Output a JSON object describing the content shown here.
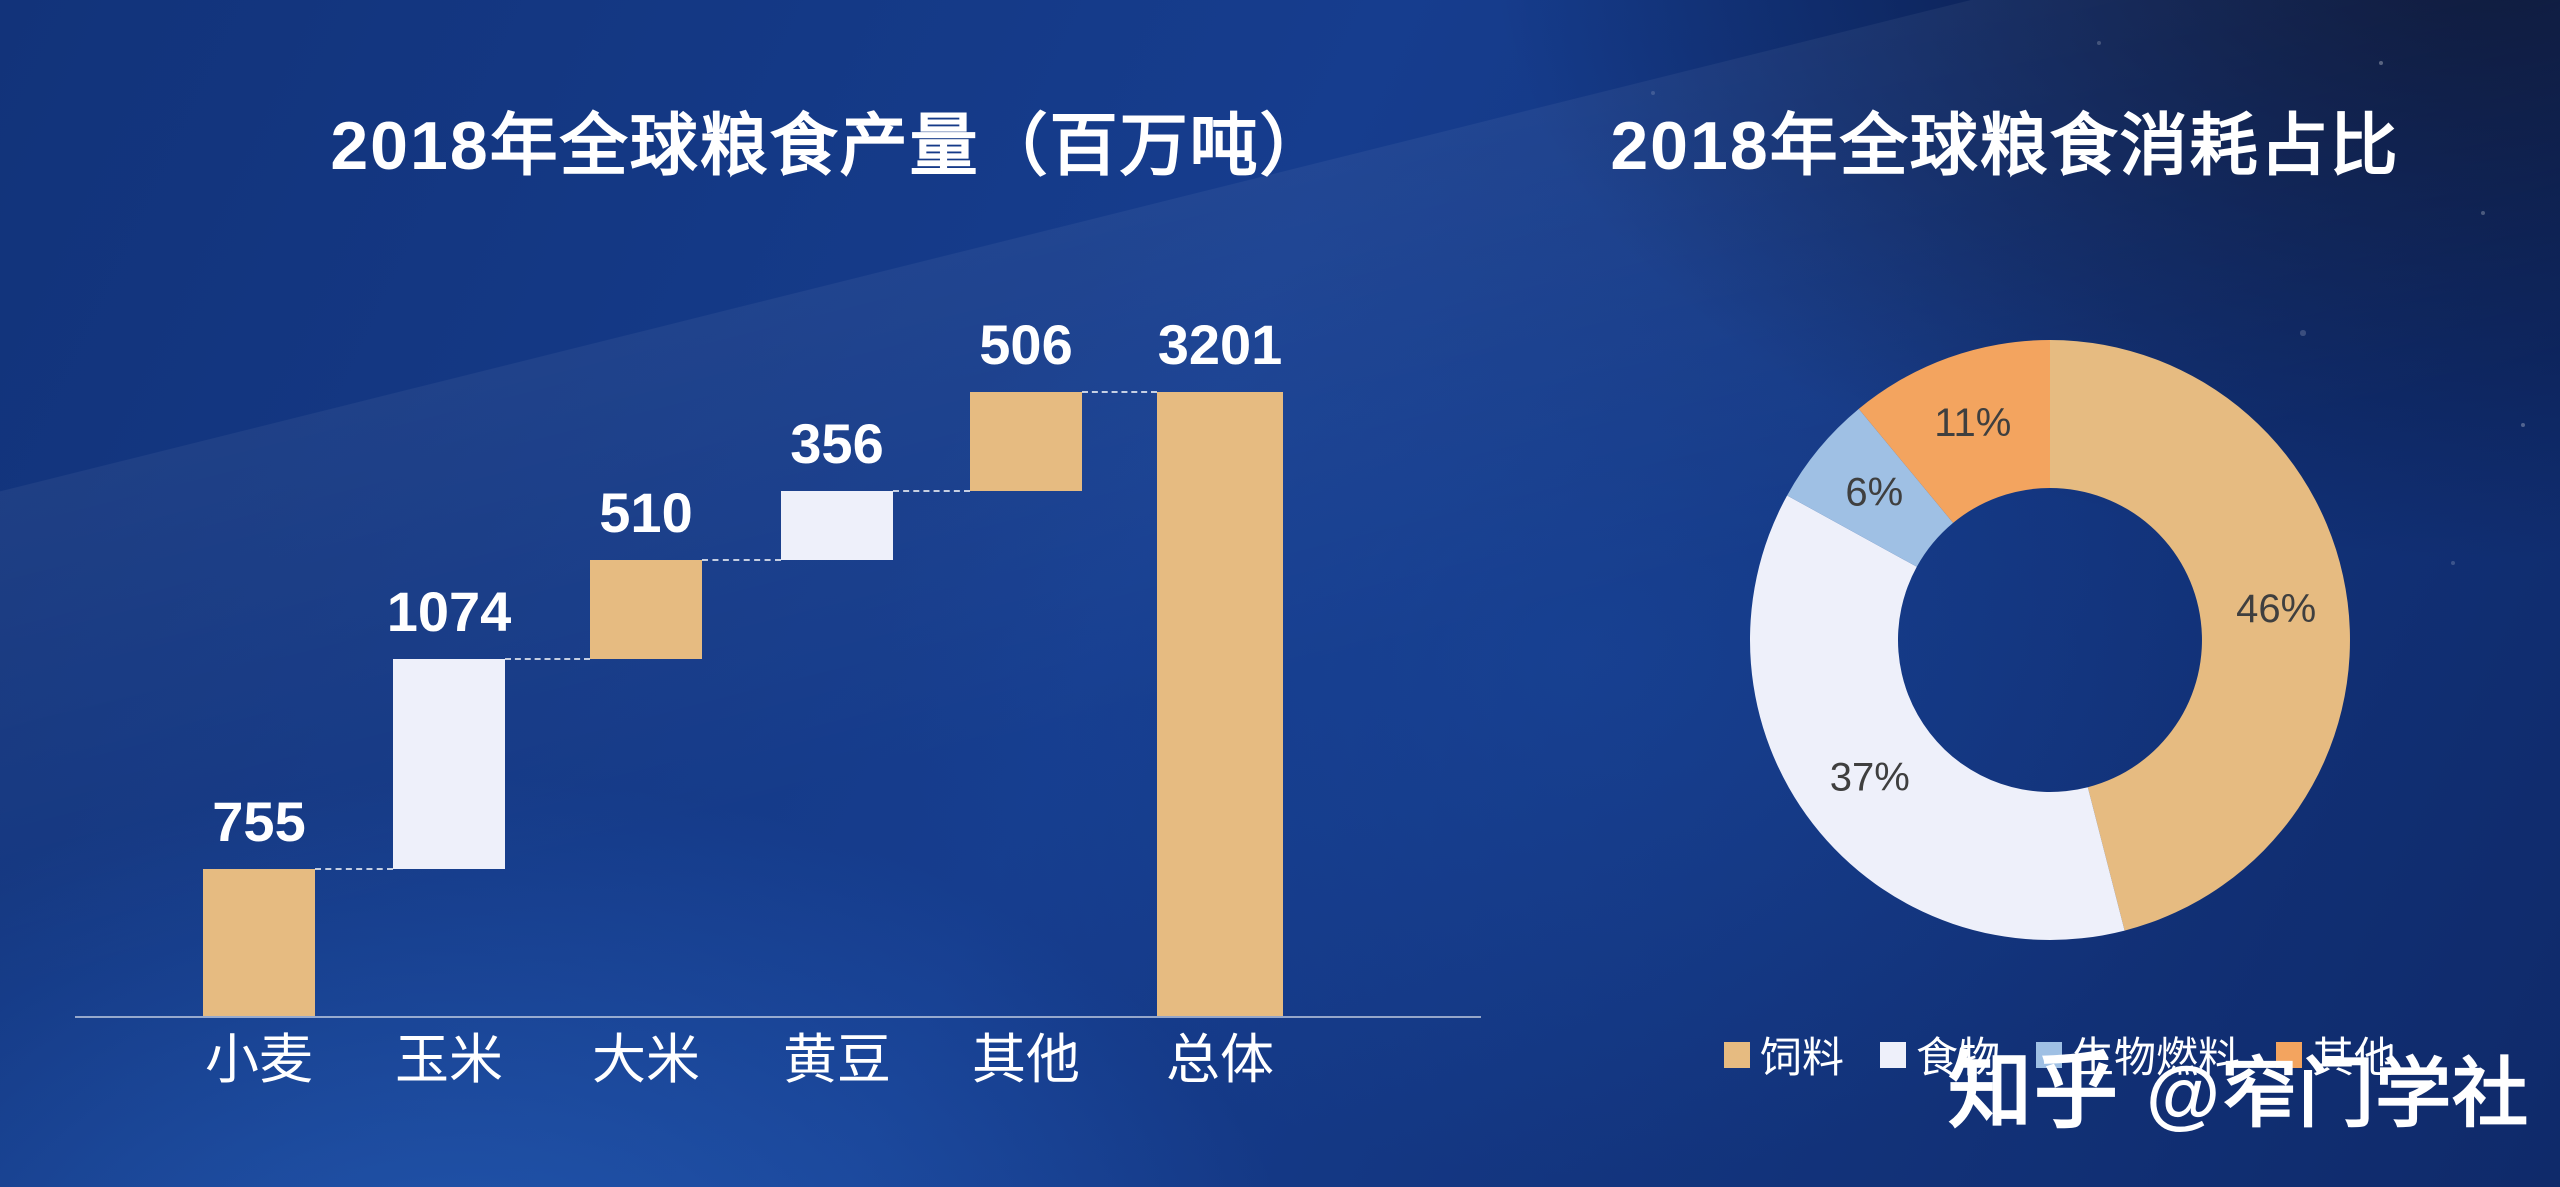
{
  "watermark": {
    "brand": "知乎",
    "handle": "@窄门学社"
  },
  "chart_data": [
    {
      "type": "bar",
      "subtype": "waterfall",
      "title": "2018年全球粮食产量（百万吨）",
      "categories": [
        "小麦",
        "玉米",
        "大米",
        "黄豆",
        "其他",
        "总体"
      ],
      "values": [
        755,
        1074,
        510,
        356,
        506,
        3201
      ],
      "is_total": [
        false,
        false,
        false,
        false,
        false,
        true
      ],
      "bar_colors": [
        "#e6bb81",
        "#eef0fa",
        "#e6bb81",
        "#eef0fa",
        "#e6bb81",
        "#e6bb81"
      ],
      "xlabel": "",
      "ylabel": "",
      "ylim": [
        0,
        3201
      ],
      "grid": false,
      "legend": "none",
      "connector_style": "dashed-white",
      "value_label_color": "#ffffff",
      "axis_line_color": "#ffffff"
    },
    {
      "type": "pie",
      "subtype": "donut",
      "title": "2018年全球粮食消耗占比",
      "categories": [
        "饲料",
        "食物",
        "生物燃料",
        "其他"
      ],
      "values": [
        46,
        37,
        6,
        11
      ],
      "labels": [
        "46%",
        "37%",
        "6%",
        "11%"
      ],
      "colors": [
        "#e6bb81",
        "#eef0fa",
        "#9fc0e4",
        "#f3a45f"
      ],
      "label_color": "#3f3f3f",
      "start_angle": 0,
      "direction": "clockwise",
      "inner_radius_ratio": 0.5,
      "legend_position": "bottom"
    }
  ]
}
